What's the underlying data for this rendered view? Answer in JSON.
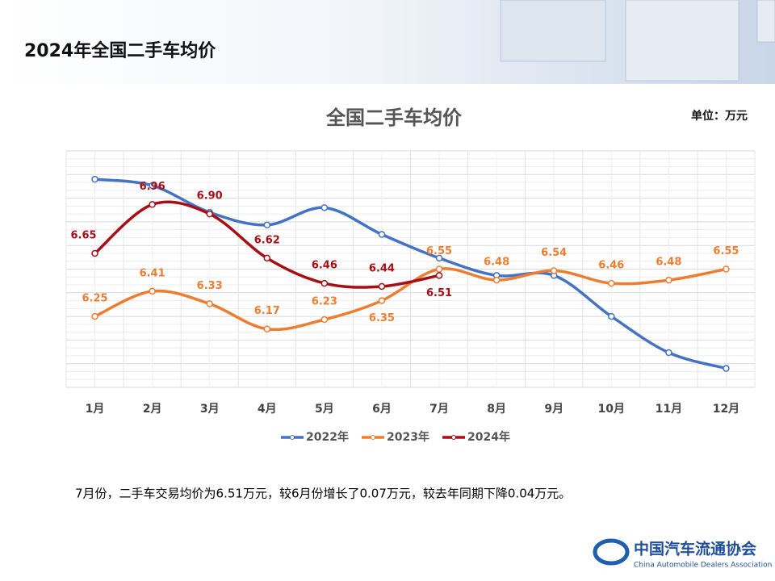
{
  "header": {
    "title": "2024年全国二手车均价"
  },
  "chart_data": {
    "type": "line",
    "title": "全国二手车均价",
    "unit": "单位：万元",
    "categories": [
      "1月",
      "2月",
      "3月",
      "4月",
      "5月",
      "6月",
      "7月",
      "8月",
      "9月",
      "10月",
      "11月",
      "12月"
    ],
    "ylim": [
      5.8,
      7.3
    ],
    "grid": true,
    "smooth": true,
    "legend": "bottom",
    "series": [
      {
        "name": "2022年",
        "color": "#4472c4",
        "values": [
          7.12,
          7.08,
          6.91,
          6.83,
          6.94,
          6.77,
          6.62,
          6.51,
          6.51,
          6.25,
          6.02,
          5.92
        ]
      },
      {
        "name": "2023年",
        "color": "#ed7d31",
        "values": [
          6.25,
          6.41,
          6.33,
          6.17,
          6.23,
          6.35,
          6.55,
          6.48,
          6.54,
          6.46,
          6.48,
          6.55
        ],
        "value_labels": [
          "6.25",
          "6.41",
          "6.33",
          "6.17",
          "6.23",
          "6.35",
          "6.55",
          "6.48",
          "6.54",
          "6.46",
          "6.48",
          "6.55"
        ]
      },
      {
        "name": "2024年",
        "color": "#a50f15",
        "values": [
          6.65,
          6.96,
          6.9,
          6.62,
          6.46,
          6.44,
          6.51,
          null,
          null,
          null,
          null,
          null
        ],
        "value_labels": [
          "6.65",
          "6.96",
          "6.90",
          "6.62",
          "6.46",
          "6.44",
          "6.51",
          null,
          null,
          null,
          null,
          null
        ]
      }
    ]
  },
  "note": "7月份，二手车交易均价为6.51万元，较6月份增长了0.07万元，较去年同期下降0.04万元。",
  "logo": {
    "cn": "中国汽车流通协会",
    "en": "China Automobile Dealers Association"
  }
}
